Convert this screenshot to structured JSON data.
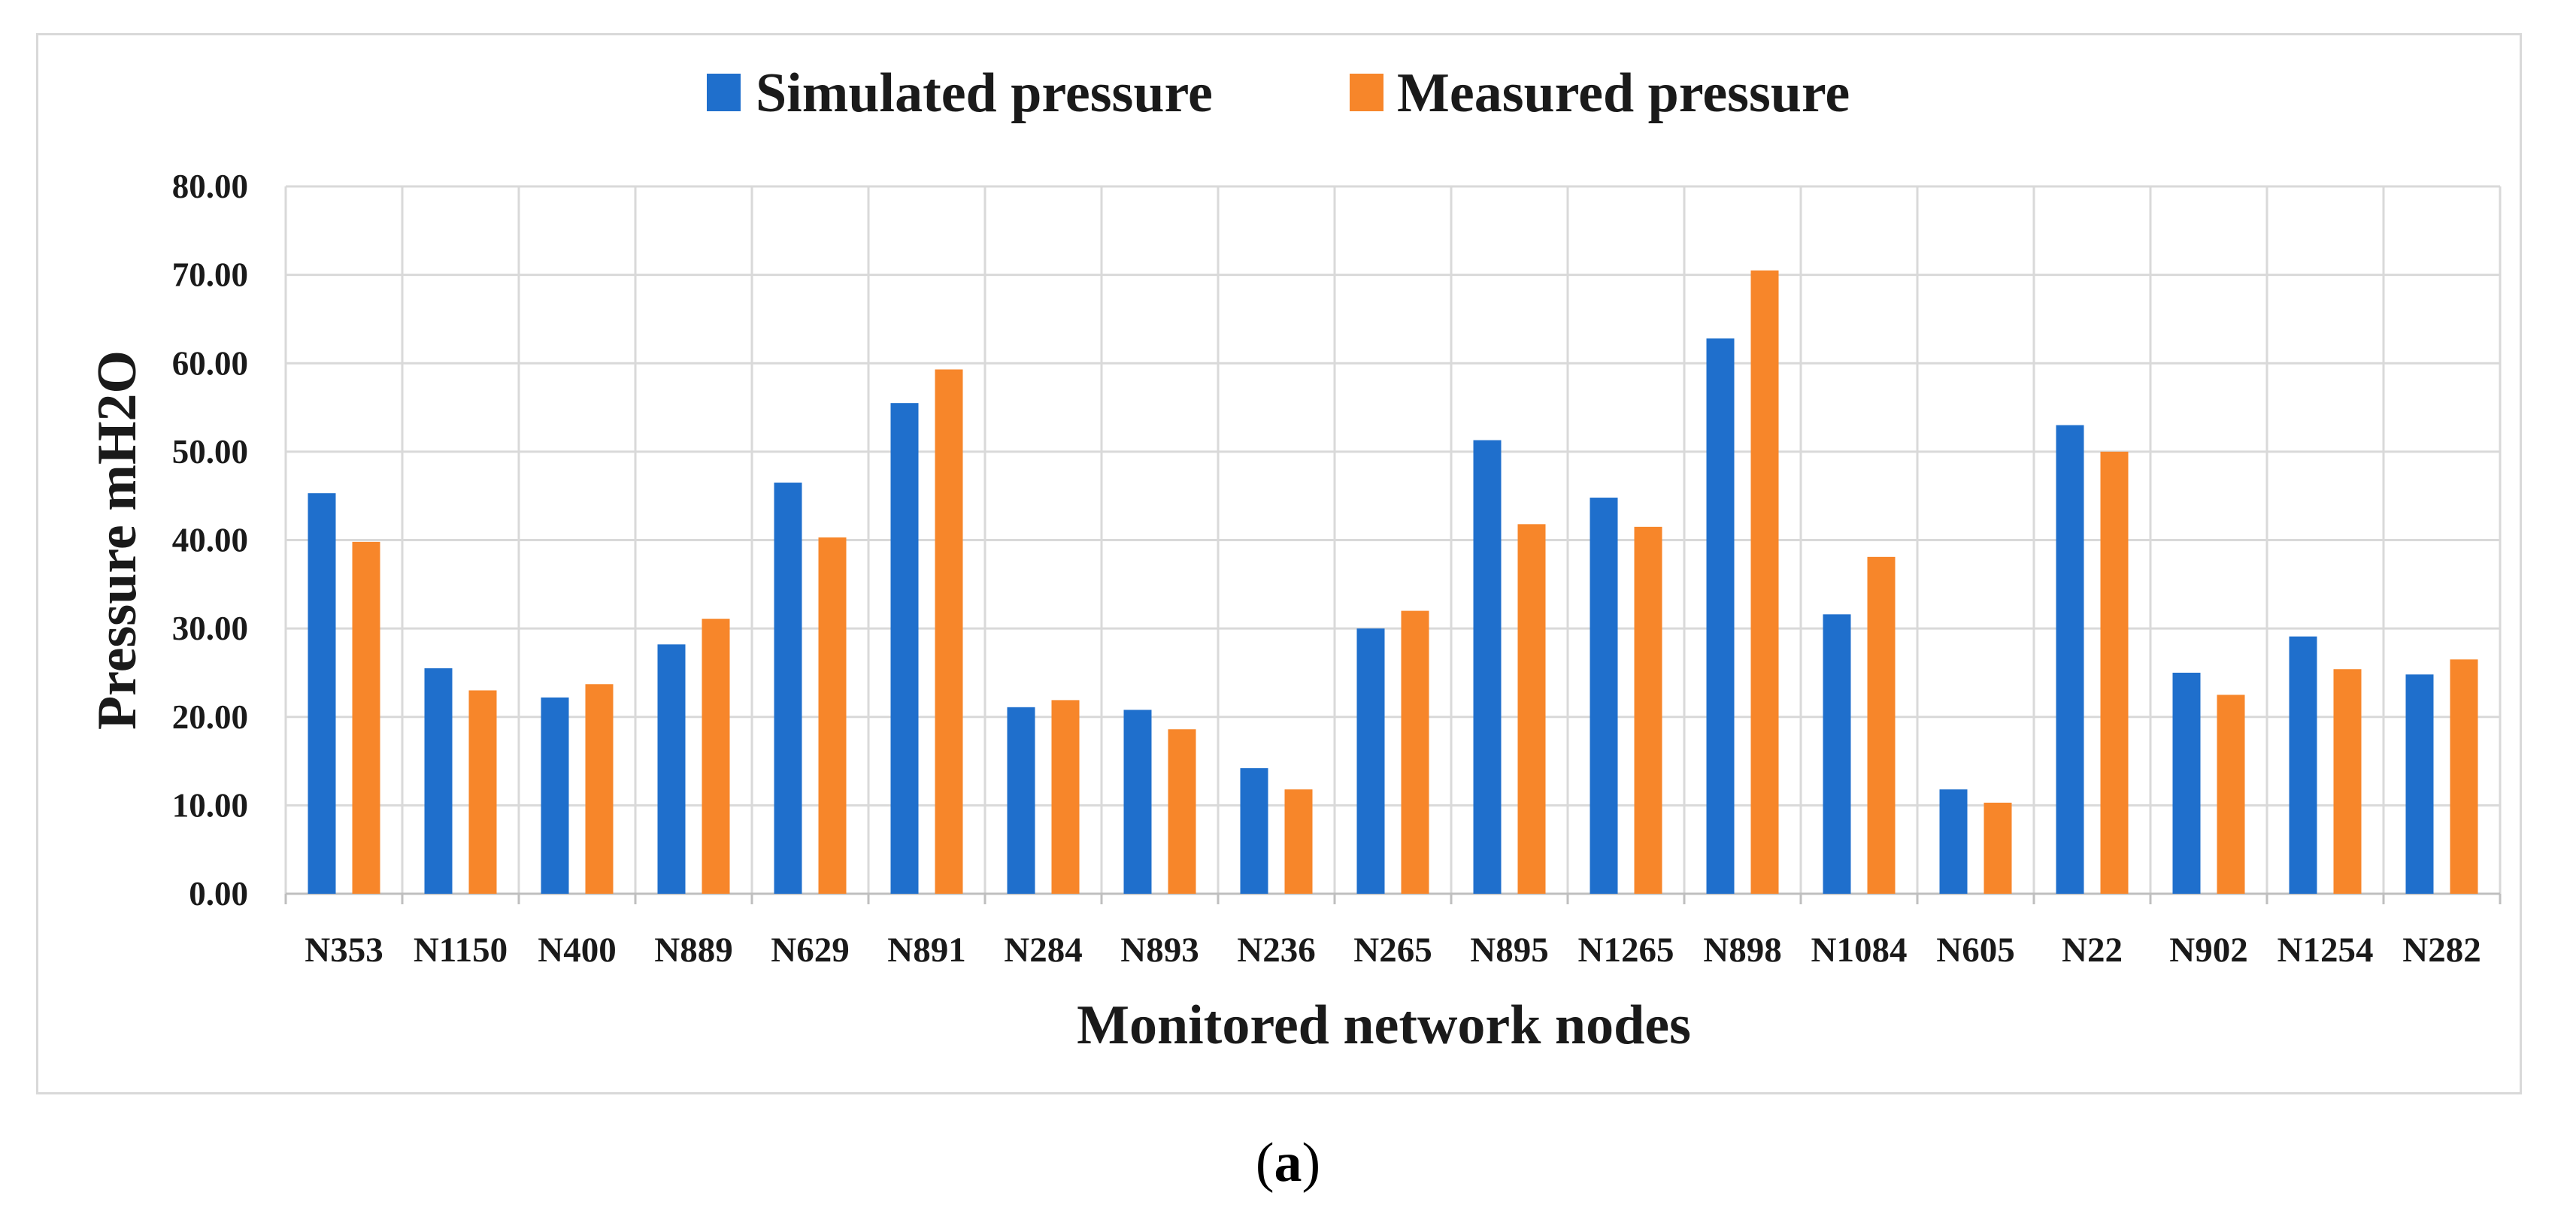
{
  "chart_data": {
    "type": "bar",
    "title": "",
    "xlabel": "Monitored network nodes",
    "ylabel": "Pressure mH2O",
    "ylim": [
      0,
      80
    ],
    "yticks": [
      "0.00",
      "10.00",
      "20.00",
      "30.00",
      "40.00",
      "50.00",
      "60.00",
      "70.00",
      "80.00"
    ],
    "grid": true,
    "legend_position": "top-center",
    "categories": [
      "N353",
      "N1150",
      "N400",
      "N889",
      "N629",
      "N891",
      "N284",
      "N893",
      "N236",
      "N265",
      "N895",
      "N1265",
      "N898",
      "N1084",
      "N605",
      "N22",
      "N902",
      "N1254",
      "N282"
    ],
    "series": [
      {
        "name": "Simulated pressure",
        "color": "#1f6fcc",
        "values": [
          45.3,
          25.5,
          22.2,
          28.2,
          46.5,
          55.5,
          21.1,
          20.8,
          14.2,
          30.0,
          51.3,
          44.8,
          62.8,
          31.6,
          11.8,
          53.0,
          25.0,
          29.1,
          24.8
        ]
      },
      {
        "name": "Measured pressure",
        "color": "#f7862a",
        "values": [
          39.8,
          23.0,
          23.7,
          31.1,
          40.3,
          59.3,
          21.9,
          18.6,
          11.8,
          32.0,
          41.8,
          41.5,
          70.5,
          38.1,
          10.3,
          50.0,
          22.5,
          25.4,
          26.5
        ]
      }
    ]
  },
  "caption": {
    "open": "(",
    "label": "a",
    "close": ")"
  }
}
